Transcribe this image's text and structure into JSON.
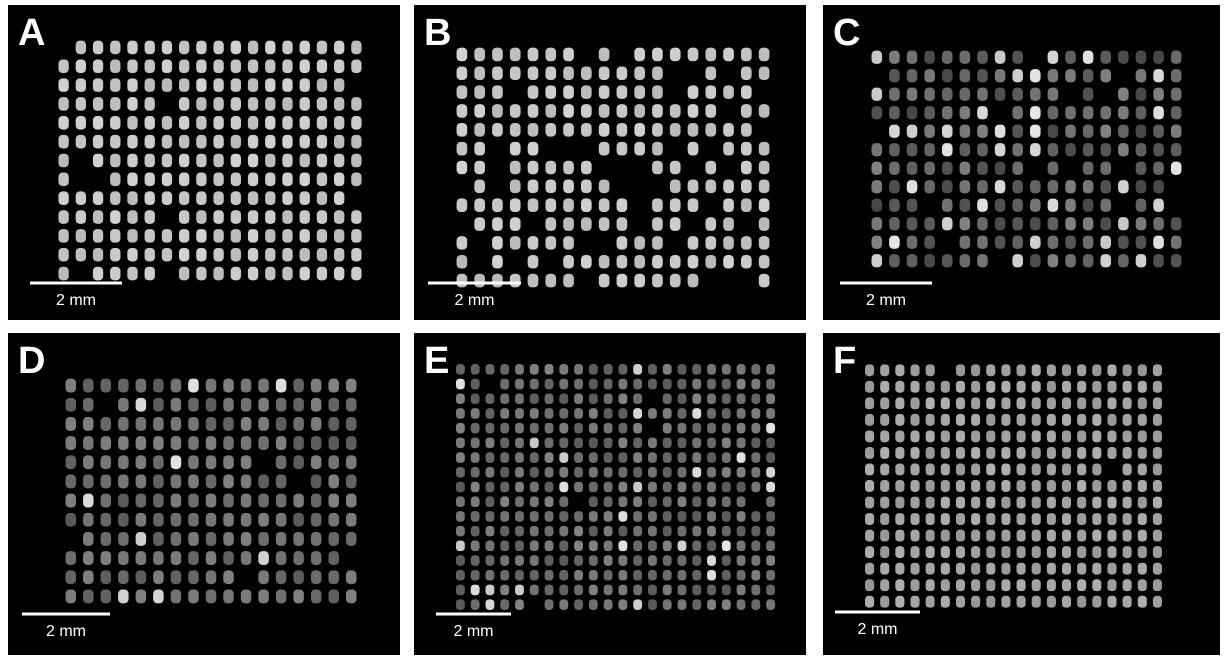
{
  "panels": [
    {
      "label": "A",
      "scale": "2 mm"
    },
    {
      "label": "B",
      "scale": "2 mm"
    },
    {
      "label": "C",
      "scale": "2 mm"
    },
    {
      "label": "D",
      "scale": "2 mm"
    },
    {
      "label": "E",
      "scale": "2 mm"
    },
    {
      "label": "F",
      "scale": "2 mm"
    }
  ]
}
